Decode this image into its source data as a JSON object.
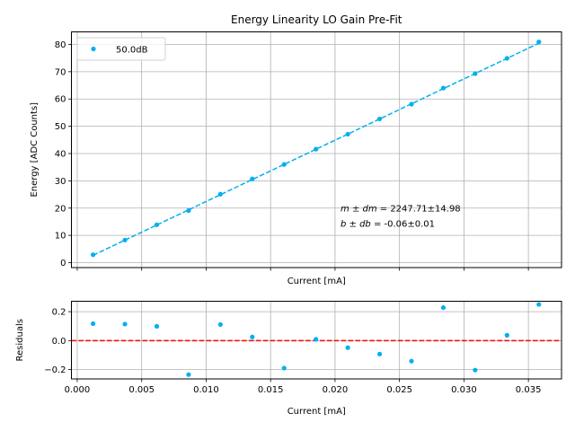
{
  "chart_data": [
    {
      "type": "scatter",
      "title": "Energy Linearity LO Gain Pre-Fit",
      "xlabel": "Current [mA]",
      "ylabel": "Energy [ADC Counts]",
      "xlim": [
        -0.00045,
        0.03757
      ],
      "ylim": [
        -1.8,
        84.6
      ],
      "grid": true,
      "xticks": [
        0.0,
        0.005,
        0.01,
        0.015,
        0.02,
        0.025,
        0.03,
        0.035
      ],
      "xtick_labels_visible": false,
      "yticks": [
        0,
        10,
        20,
        30,
        40,
        50,
        60,
        70,
        80
      ],
      "ytick_labels": [
        "0",
        "10",
        "20",
        "30",
        "40",
        "50",
        "60",
        "70",
        "80"
      ],
      "legend": {
        "placement": "upper-left",
        "entries": [
          "50.0dB"
        ]
      },
      "series": [
        {
          "name": "50.0dB",
          "color": "#00b0f0",
          "marker": "dot",
          "x": [
            0.00123,
            0.0037,
            0.00617,
            0.00864,
            0.01111,
            0.01358,
            0.01605,
            0.01852,
            0.02099,
            0.02346,
            0.02593,
            0.0284,
            0.03087,
            0.03334,
            0.03581
          ],
          "y": [
            2.9,
            8.3,
            13.9,
            19.1,
            25.1,
            30.7,
            36.0,
            41.6,
            47.1,
            52.7,
            58.1,
            64.0,
            69.3,
            74.9,
            80.9
          ]
        }
      ],
      "fit_line": {
        "color": "#00b0f0",
        "style": "dashed",
        "slope": 2247.71,
        "intercept": -0.06
      },
      "annotations": [
        {
          "text_math": "m ± dm",
          "text_value": " = 2247.71±14.98"
        },
        {
          "text_math": "b ± db",
          "text_value": " = -0.06±0.01"
        }
      ]
    },
    {
      "type": "scatter",
      "title": "",
      "xlabel": "Current [mA]",
      "ylabel": "Residuals",
      "xlim": [
        -0.00045,
        0.03757
      ],
      "ylim": [
        -0.265,
        0.272
      ],
      "grid": true,
      "xticks": [
        0.0,
        0.005,
        0.01,
        0.015,
        0.02,
        0.025,
        0.03,
        0.035
      ],
      "xtick_labels": [
        "0.000",
        "0.005",
        "0.010",
        "0.015",
        "0.020",
        "0.025",
        "0.030",
        "0.035"
      ],
      "yticks": [
        -0.2,
        0.0,
        0.2
      ],
      "ytick_labels": [
        "−0.2",
        "0.0",
        "0.2"
      ],
      "series": [
        {
          "name": "residuals",
          "color": "#00b0f0",
          "marker": "dot",
          "x": [
            0.00123,
            0.0037,
            0.00617,
            0.00864,
            0.01111,
            0.01358,
            0.01605,
            0.01852,
            0.02099,
            0.02346,
            0.02593,
            0.0284,
            0.03087,
            0.03334,
            0.03581
          ],
          "y": [
            0.117,
            0.114,
            0.099,
            -0.235,
            0.111,
            0.025,
            -0.19,
            0.009,
            -0.049,
            -0.093,
            -0.142,
            0.228,
            -0.204,
            0.037,
            0.25
          ]
        }
      ],
      "reference_line": {
        "y": 0.0,
        "color": "#ff0000",
        "style": "dashed"
      }
    }
  ]
}
